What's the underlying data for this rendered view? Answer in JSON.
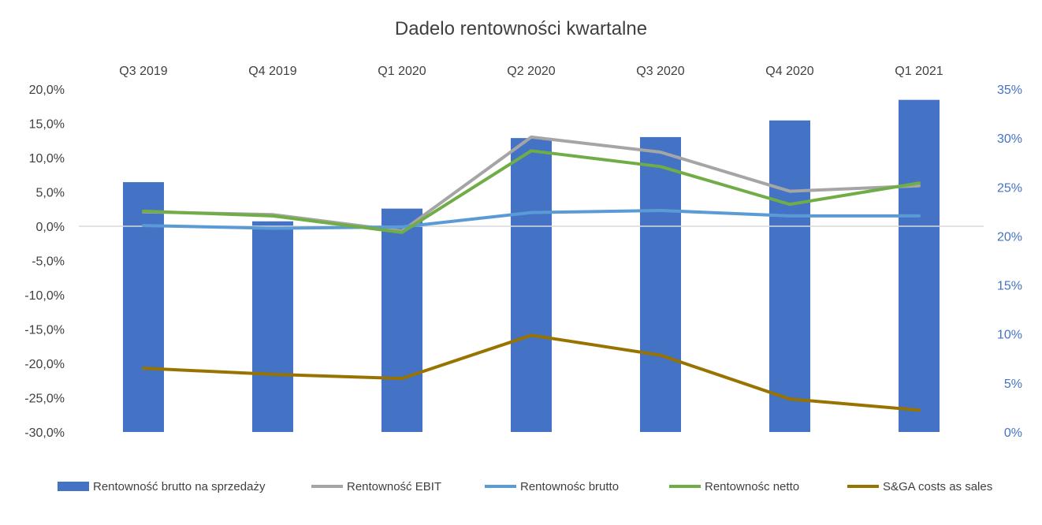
{
  "chart_data": {
    "type": "bar",
    "title": "Dadelo rentowności kwartalne",
    "categories": [
      "Q3 2019",
      "Q4 2019",
      "Q1 2020",
      "Q2 2020",
      "Q3 2020",
      "Q4 2020",
      "Q1 2021"
    ],
    "left_axis": {
      "ylim": [
        -30,
        20
      ],
      "ticks": [
        20,
        15,
        10,
        5,
        0,
        -5,
        -10,
        -15,
        -20,
        -25,
        -30
      ],
      "tick_labels": [
        "20,0%",
        "15,0%",
        "10,0%",
        "5,0%",
        "0,0%",
        "-5,0%",
        "-10,0%",
        "-15,0%",
        "-20,0%",
        "-25,0%",
        "-30,0%"
      ]
    },
    "right_axis": {
      "ylim": [
        0,
        35
      ],
      "ticks": [
        35,
        30,
        25,
        20,
        15,
        10,
        5,
        0
      ],
      "tick_labels": [
        "35%",
        "30%",
        "25%",
        "20%",
        "15%",
        "10%",
        "5%",
        "0%"
      ]
    },
    "category_axis_position": "top",
    "grid": false,
    "legend_position": "bottom",
    "series": [
      {
        "name": "Rentowność brutto na sprzedaży",
        "kind": "bar",
        "axis": "right",
        "color": "#4472C4",
        "values": [
          25.5,
          21.5,
          22.8,
          30.0,
          30.1,
          31.8,
          33.9
        ]
      },
      {
        "name": "Rentowność EBIT",
        "kind": "line",
        "axis": "left",
        "color": "#A5A5A5",
        "values": [
          2.1,
          1.7,
          -0.7,
          13.0,
          10.8,
          5.1,
          5.9
        ]
      },
      {
        "name": "Rentownośc brutto",
        "kind": "line",
        "axis": "left",
        "color": "#5B9BD5",
        "values": [
          0.1,
          -0.3,
          -0.1,
          2.0,
          2.3,
          1.5,
          1.5
        ]
      },
      {
        "name": "Rentownośc netto",
        "kind": "line",
        "axis": "left",
        "color": "#70AD47",
        "values": [
          2.2,
          1.5,
          -0.9,
          11.0,
          8.7,
          3.2,
          6.3
        ]
      },
      {
        "name": "S&GA costs as sales",
        "kind": "line",
        "axis": "left",
        "color": "#997300",
        "values": [
          -20.7,
          -21.6,
          -22.2,
          -15.9,
          -18.8,
          -25.2,
          -26.8
        ]
      }
    ]
  }
}
